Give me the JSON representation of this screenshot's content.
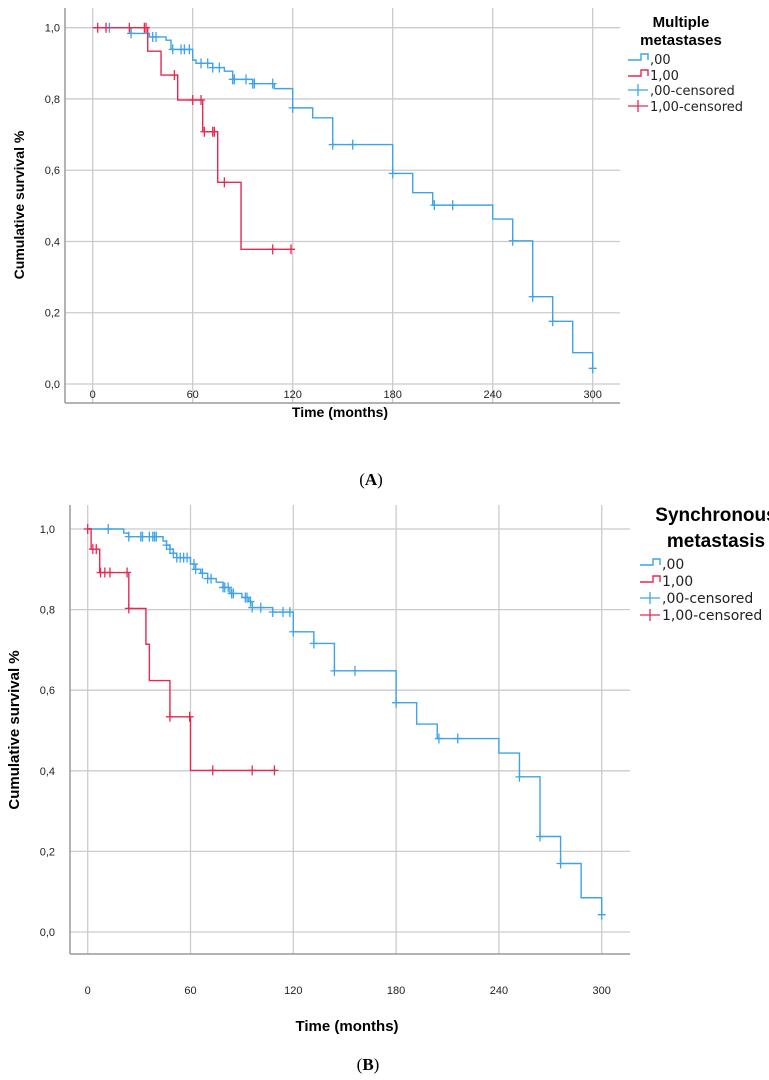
{
  "colors": {
    "group0": "#3ea3e8",
    "group1": "#e8294f",
    "grid": "#cbcbcb",
    "axis": "#9a9a9a"
  },
  "chart_data": [
    {
      "type": "line",
      "subtype": "kaplan-meier step",
      "panel_label": "A",
      "legend_title": [
        "Multiple",
        "metastases"
      ],
      "legend_labels": [
        ",00",
        "1,00",
        ",00-censored",
        "1,00-censored"
      ],
      "legend_position": "top-right",
      "xlabel": "Time (months)",
      "ylabel": "Cumulative survival %",
      "xticks": [
        0,
        60,
        120,
        180,
        240,
        300
      ],
      "xtick_labels": [
        "0",
        "60",
        "120",
        "180",
        "240",
        "300"
      ],
      "yticks": [
        0,
        0.2,
        0.4,
        0.6,
        0.8,
        1.0
      ],
      "ytick_labels": [
        "0,0",
        "0,2",
        "0,4",
        "0,6",
        "0,8",
        "1,0"
      ],
      "xlim": [
        -17,
        316
      ],
      "ylim": [
        -0.055,
        1.07
      ],
      "grid": true,
      "series": [
        {
          "name": ",00",
          "color_key": "group0",
          "end": 300,
          "steps": [
            [
              0,
              1.0
            ],
            [
              23,
              0.984
            ],
            [
              34,
              0.974
            ],
            [
              44,
              0.965
            ],
            [
              47,
              0.939
            ],
            [
              60,
              0.909
            ],
            [
              62,
              0.9
            ],
            [
              72,
              0.888
            ],
            [
              79,
              0.878
            ],
            [
              84,
              0.855
            ],
            [
              96,
              0.843
            ],
            [
              109,
              0.829
            ],
            [
              120,
              0.775
            ],
            [
              132,
              0.747
            ],
            [
              144,
              0.672
            ],
            [
              180,
              0.591
            ],
            [
              192,
              0.537
            ],
            [
              204,
              0.502
            ],
            [
              240,
              0.463
            ],
            [
              252,
              0.402
            ],
            [
              264,
              0.245
            ],
            [
              276,
              0.176
            ],
            [
              288,
              0.088
            ],
            [
              300,
              0.044
            ]
          ],
          "censored": [
            10,
            23,
            36,
            38,
            48,
            53,
            55,
            58,
            65,
            69,
            72,
            76,
            84,
            85,
            92,
            96,
            97,
            108,
            120,
            144,
            156,
            180,
            205,
            216,
            252,
            264,
            276,
            300
          ]
        },
        {
          "name": "1,00",
          "color_key": "group1",
          "end": 120,
          "steps": [
            [
              0,
              1.0
            ],
            [
              33,
              0.934
            ],
            [
              41,
              0.867
            ],
            [
              51,
              0.797
            ],
            [
              66,
              0.708
            ],
            [
              75,
              0.566
            ],
            [
              89,
              0.378
            ]
          ],
          "censored": [
            3,
            8,
            22,
            31,
            32,
            49,
            60,
            65,
            67,
            72,
            73,
            79,
            108,
            119
          ]
        }
      ]
    },
    {
      "type": "line",
      "subtype": "kaplan-meier step",
      "panel_label": "B",
      "legend_title": [
        "Synchronous",
        "metastasis"
      ],
      "legend_labels": [
        ",00",
        "1,00",
        ",00-censored",
        "1,00-censored"
      ],
      "legend_position": "top-right",
      "xlabel": "Time (months)",
      "ylabel": "Cumulative survival %",
      "xticks": [
        0,
        60,
        120,
        180,
        240,
        300
      ],
      "xtick_labels": [
        "0",
        "60",
        "120",
        "180",
        "240",
        "300"
      ],
      "yticks": [
        0,
        0.2,
        0.4,
        0.6,
        0.8,
        1.0
      ],
      "ytick_labels": [
        "0,0",
        "0,2",
        "0,4",
        "0,6",
        "0,8",
        "1,0"
      ],
      "xlim": [
        -10,
        317
      ],
      "ylim": [
        -0.055,
        1.06
      ],
      "grid": true,
      "series": [
        {
          "name": ",00",
          "color_key": "group0",
          "end": 300,
          "steps": [
            [
              0,
              1.0
            ],
            [
              21,
              0.99
            ],
            [
              24,
              0.981
            ],
            [
              44,
              0.97
            ],
            [
              46,
              0.96
            ],
            [
              48,
              0.95
            ],
            [
              50,
              0.94
            ],
            [
              52,
              0.929
            ],
            [
              60,
              0.913
            ],
            [
              63,
              0.9
            ],
            [
              66,
              0.89
            ],
            [
              70,
              0.877
            ],
            [
              75,
              0.868
            ],
            [
              79,
              0.855
            ],
            [
              83,
              0.84
            ],
            [
              90,
              0.83
            ],
            [
              94,
              0.82
            ],
            [
              96,
              0.805
            ],
            [
              108,
              0.794
            ],
            [
              120,
              0.745
            ],
            [
              132,
              0.716
            ],
            [
              144,
              0.648
            ],
            [
              180,
              0.569
            ],
            [
              192,
              0.516
            ],
            [
              204,
              0.48
            ],
            [
              240,
              0.444
            ],
            [
              252,
              0.385
            ],
            [
              264,
              0.237
            ],
            [
              276,
              0.17
            ],
            [
              288,
              0.085
            ],
            [
              300,
              0.043
            ]
          ],
          "censored": [
            12,
            24,
            31,
            32,
            36,
            38,
            39,
            40,
            46,
            48,
            50,
            52,
            54,
            56,
            58,
            62,
            63,
            67,
            70,
            72,
            79,
            80,
            82,
            84,
            85,
            92,
            93,
            95,
            96,
            101,
            108,
            114,
            118,
            120,
            132,
            144,
            156,
            180,
            205,
            216,
            252,
            264,
            276,
            300
          ]
        },
        {
          "name": "1,00",
          "color_key": "group1",
          "end": 110,
          "steps": [
            [
              0,
              1.0
            ],
            [
              2,
              0.95
            ],
            [
              7,
              0.892
            ],
            [
              24,
              0.803
            ],
            [
              34,
              0.714
            ],
            [
              36,
              0.624
            ],
            [
              48,
              0.534
            ],
            [
              60,
              0.401
            ]
          ],
          "censored": [
            0,
            3,
            5,
            7.5,
            10,
            13,
            23,
            24,
            48,
            59.5,
            73,
            96,
            109
          ]
        }
      ]
    }
  ]
}
